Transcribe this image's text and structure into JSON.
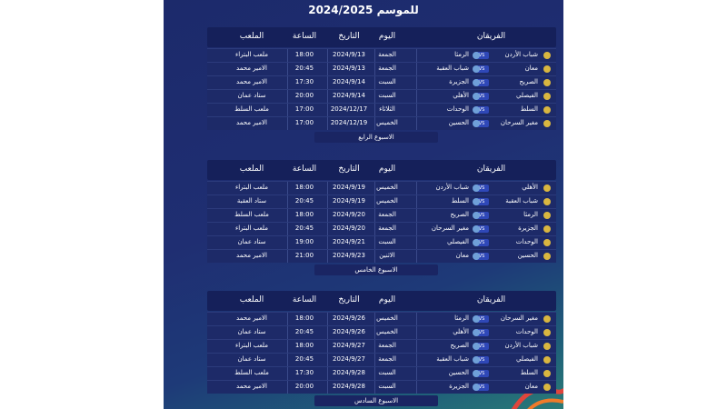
{
  "title": "للموسم 2024/2025",
  "headers": {
    "teams": "الفريقان",
    "day": "اليوم",
    "date": "التاريخ",
    "time": "الساعة",
    "venue": "الملعب",
    "vs": "VS"
  },
  "weeks": [
    {
      "label": "الاسبوع الرابع",
      "matches": [
        {
          "home": "شباب الأردن",
          "away": "الرمثا",
          "day": "الجمعة",
          "date": "2024/9/13",
          "time": "18:00",
          "venue": "ملعب البتراء"
        },
        {
          "home": "معان",
          "away": "شباب العقبة",
          "day": "الجمعة",
          "date": "2024/9/13",
          "time": "20:45",
          "venue": "الامير محمد"
        },
        {
          "home": "الصريح",
          "away": "الجزيرة",
          "day": "السبت",
          "date": "2024/9/14",
          "time": "17:30",
          "venue": "الامير محمد"
        },
        {
          "home": "الفيصلي",
          "away": "الأهلي",
          "day": "السبت",
          "date": "2024/9/14",
          "time": "20:00",
          "venue": "ستاد عمان"
        },
        {
          "home": "السلط",
          "away": "الوحدات",
          "day": "الثلاثاء",
          "date": "2024/12/17",
          "time": "17:00",
          "venue": "ملعب السلط"
        },
        {
          "home": "مغير السرحان",
          "away": "الحسين",
          "day": "الخميس",
          "date": "2024/12/19",
          "time": "17:00",
          "venue": "الامير محمد"
        }
      ]
    },
    {
      "label": "الاسبوع الخامس",
      "matches": [
        {
          "home": "الأهلي",
          "away": "شباب الأردن",
          "day": "الخميس",
          "date": "2024/9/19",
          "time": "18:00",
          "venue": "ملعب البتراء"
        },
        {
          "home": "شباب العقبة",
          "away": "السلط",
          "day": "الخميس",
          "date": "2024/9/19",
          "time": "20:45",
          "venue": "ستاد العقبة"
        },
        {
          "home": "الرمثا",
          "away": "الصريح",
          "day": "الجمعة",
          "date": "2024/9/20",
          "time": "18:00",
          "venue": "ملعب السلط"
        },
        {
          "home": "الجزيرة",
          "away": "مغير السرحان",
          "day": "الجمعة",
          "date": "2024/9/20",
          "time": "20:45",
          "venue": "ملعب البتراء"
        },
        {
          "home": "الوحدات",
          "away": "الفيصلي",
          "day": "السبت",
          "date": "2024/9/21",
          "time": "19:00",
          "venue": "ستاد عمان"
        },
        {
          "home": "الحسين",
          "away": "معان",
          "day": "الاثنين",
          "date": "2024/9/23",
          "time": "21:00",
          "venue": "الامير محمد"
        }
      ]
    },
    {
      "label": "الاسبوع السادس",
      "matches": [
        {
          "home": "مغير السرحان",
          "away": "الرمثا",
          "day": "الخميس",
          "date": "2024/9/26",
          "time": "18:00",
          "venue": "الامير محمد"
        },
        {
          "home": "الوحدات",
          "away": "الأهلي",
          "day": "الخميس",
          "date": "2024/9/26",
          "time": "20:45",
          "venue": "ستاد عمان"
        },
        {
          "home": "شباب الأردن",
          "away": "الصريح",
          "day": "الجمعة",
          "date": "2024/9/27",
          "time": "18:00",
          "venue": "ملعب البتراء"
        },
        {
          "home": "الفيصلي",
          "away": "شباب العقبة",
          "day": "الجمعة",
          "date": "2024/9/27",
          "time": "20:45",
          "venue": "ستاد عمان"
        },
        {
          "home": "السلط",
          "away": "الحسين",
          "day": "السبت",
          "date": "2024/9/28",
          "time": "17:30",
          "venue": "ملعب السلط"
        },
        {
          "home": "معان",
          "away": "الجزيرة",
          "day": "السبت",
          "date": "2024/9/28",
          "time": "20:00",
          "venue": "الامير محمد"
        }
      ]
    }
  ]
}
